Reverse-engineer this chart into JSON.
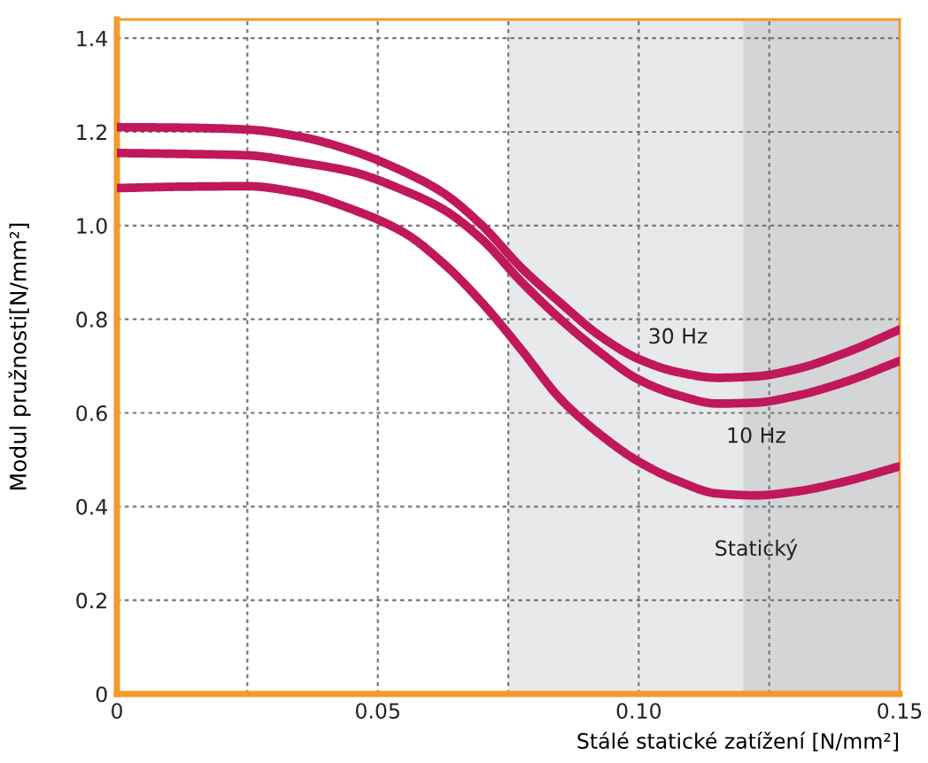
{
  "chart_data": {
    "type": "line",
    "xlabel": "Stálé statické zatížení [N/mm²]",
    "ylabel": "Modul pružnosti[N/mm²]",
    "x": [
      0,
      0.0125,
      0.025,
      0.035,
      0.045,
      0.055,
      0.0625,
      0.07,
      0.0775,
      0.085,
      0.0925,
      0.1,
      0.1075,
      0.115,
      0.1225,
      0.13,
      0.14,
      0.15
    ],
    "series": [
      {
        "name": "30 Hz",
        "color": "#c0185a",
        "values": [
          1.21,
          1.209,
          1.205,
          1.19,
          1.16,
          1.115,
          1.07,
          1.0,
          0.91,
          0.835,
          0.765,
          0.715,
          0.687,
          0.675,
          0.678,
          0.693,
          0.73,
          0.778
        ]
      },
      {
        "name": "10 Hz",
        "color": "#c0185a",
        "values": [
          1.155,
          1.153,
          1.15,
          1.135,
          1.115,
          1.075,
          1.035,
          0.97,
          0.88,
          0.8,
          0.73,
          0.671,
          0.638,
          0.62,
          0.622,
          0.636,
          0.668,
          0.711
        ]
      },
      {
        "name": "Statický",
        "color": "#c0185a",
        "values": [
          1.08,
          1.083,
          1.084,
          1.07,
          1.035,
          0.985,
          0.92,
          0.835,
          0.735,
          0.63,
          0.555,
          0.496,
          0.455,
          0.428,
          0.424,
          0.432,
          0.455,
          0.486
        ]
      }
    ],
    "xlim": [
      0,
      0.15
    ],
    "ylim": [
      0,
      1.44
    ],
    "xticks": [
      0,
      {
        "value": 0.025,
        "label": null
      },
      0.05,
      {
        "value": 0.075,
        "label": null
      },
      {
        "value": 0.1,
        "label": "0.10"
      },
      {
        "value": 0.125,
        "label": null
      },
      0.15
    ],
    "yticks": [
      0,
      0.2,
      0.4,
      0.6,
      0.8,
      {
        "value": 1.0,
        "label": "1.0"
      },
      1.2,
      1.4
    ],
    "bands": [
      {
        "axis": "x",
        "from": 0.075,
        "to": 0.12,
        "color": "#e8e9eb"
      },
      {
        "axis": "x",
        "from": 0.12,
        "to": 0.15,
        "color": "#d4d5d7"
      }
    ],
    "grid": true,
    "line_style": "solid",
    "marker": "none",
    "legend": false
  }
}
